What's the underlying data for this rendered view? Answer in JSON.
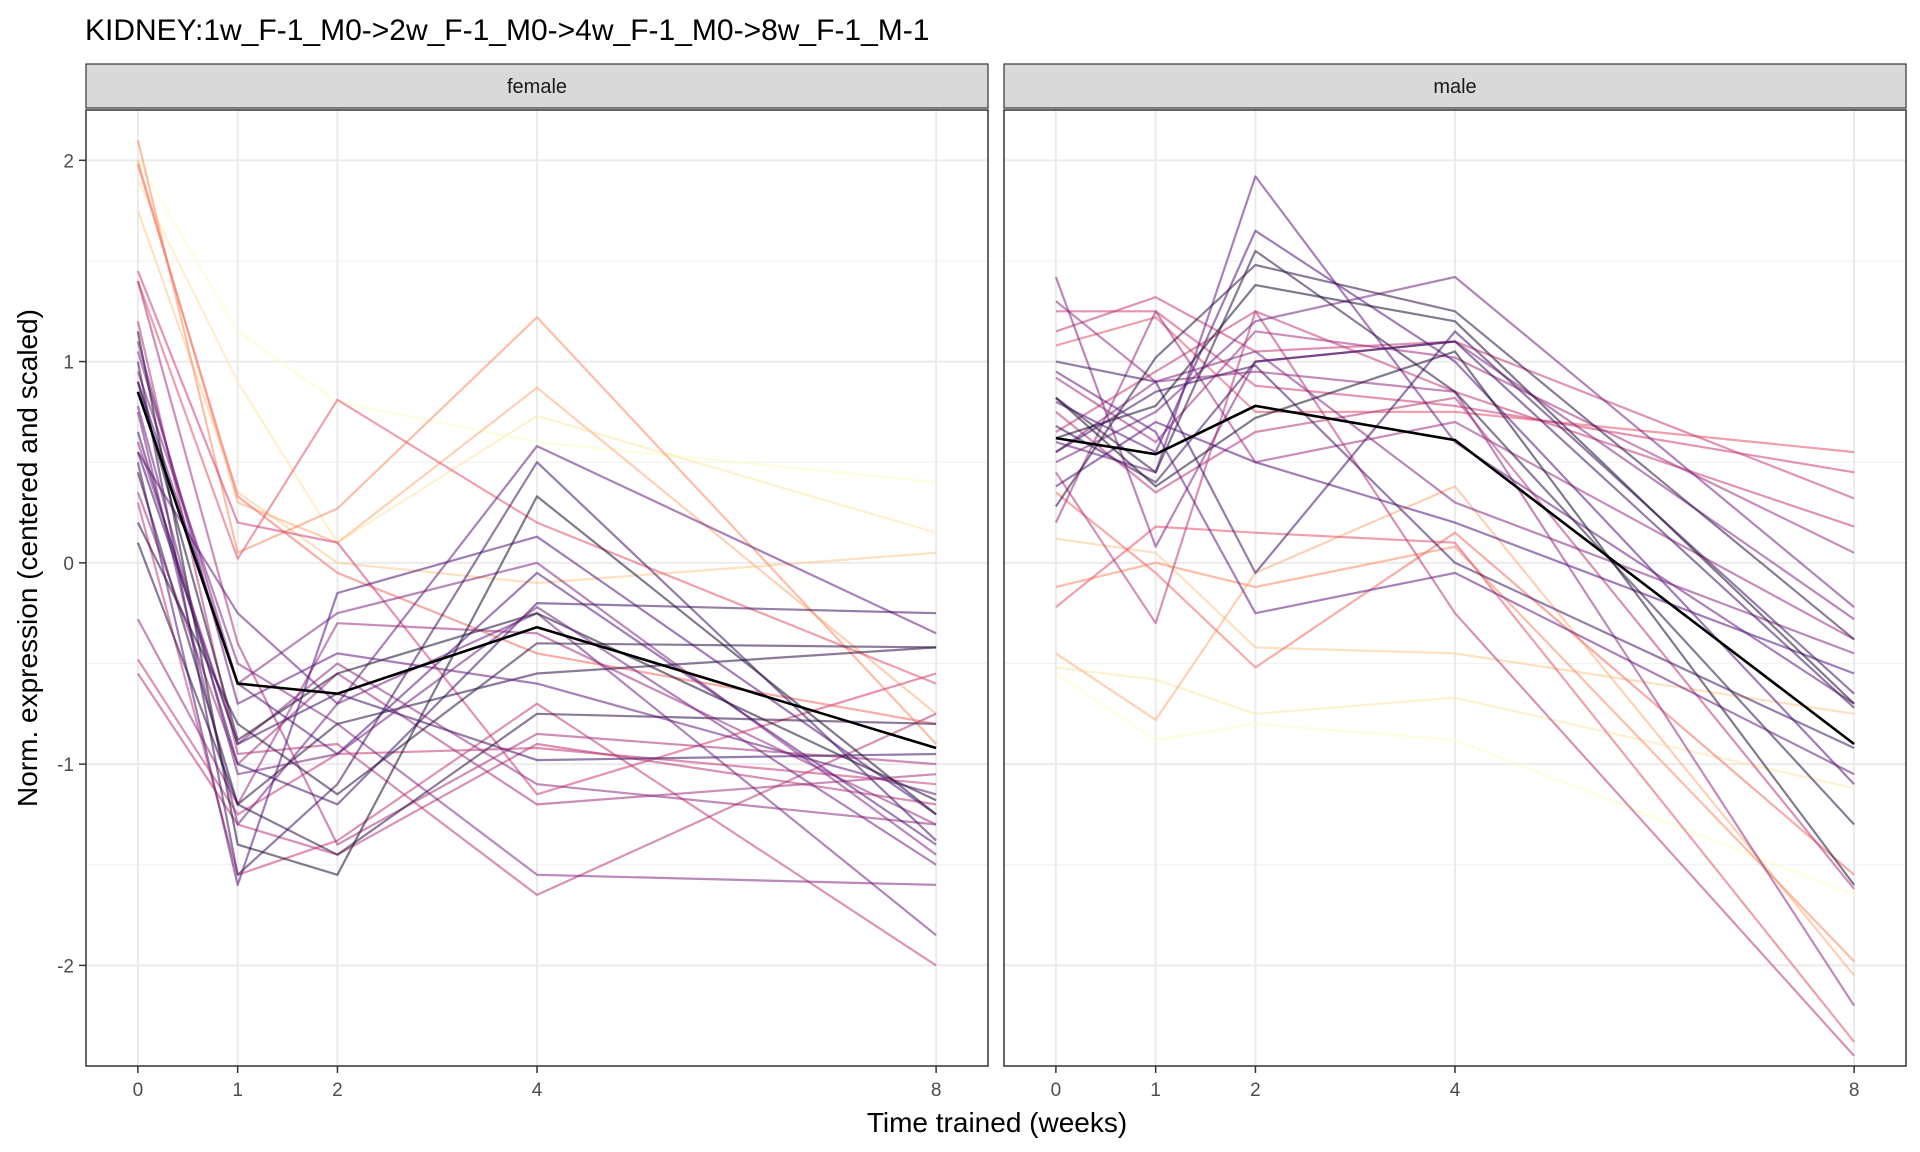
{
  "chart_data": {
    "type": "line",
    "title": "KIDNEY:1w_F-1_M0->2w_F-1_M0->4w_F-1_M0->8w_F-1_M-1",
    "xlabel": "Time trained (weeks)",
    "ylabel": "Norm. expression (centered and scaled)",
    "x": [
      0,
      1,
      2,
      4,
      8
    ],
    "x_ticks": [
      "0",
      "1",
      "2",
      "4",
      "8"
    ],
    "ylim": [
      -2.5,
      2.25
    ],
    "y_ticks": [
      2,
      1,
      0,
      -1,
      -2
    ],
    "y_tick_labels": [
      "2",
      "1",
      "0",
      "-1",
      "-2"
    ],
    "grid": true,
    "legend": "none",
    "colors": {
      "mean_line": "#000000",
      "palette": [
        "#fcfdbf",
        "#fec98d",
        "#fb8861",
        "#e3506a",
        "#b73779",
        "#822681",
        "#51127c",
        "#2a1141",
        "#000004"
      ]
    },
    "facets": [
      {
        "label": "female",
        "mean": [
          0.85,
          -0.6,
          -0.65,
          -0.32,
          -0.92
        ],
        "series": [
          {
            "values": [
              2.0,
              1.15,
              0.8,
              0.6,
              0.4
            ],
            "color": "#fcfdbf"
          },
          {
            "values": [
              1.9,
              0.9,
              0.1,
              0.73,
              0.15
            ],
            "color": "#fde5a7"
          },
          {
            "values": [
              1.75,
              0.35,
              0.0,
              -0.1,
              0.05
            ],
            "color": "#fec98d"
          },
          {
            "values": [
              2.0,
              0.3,
              0.1,
              0.87,
              -0.75
            ],
            "color": "#fdac78"
          },
          {
            "values": [
              2.1,
              0.05,
              0.27,
              1.22,
              -0.9
            ],
            "color": "#fb8861"
          },
          {
            "values": [
              1.98,
              0.33,
              -0.05,
              -0.45,
              -0.8
            ],
            "color": "#f3675e"
          },
          {
            "values": [
              1.4,
              0.02,
              0.81,
              0.2,
              -0.6
            ],
            "color": "#e3506a"
          },
          {
            "values": [
              1.45,
              0.2,
              0.1,
              -1.15,
              -0.55
            ],
            "color": "#d13b73"
          },
          {
            "values": [
              -0.48,
              -1.25,
              -0.95,
              -0.92,
              -1.1
            ],
            "color": "#c53a76"
          },
          {
            "values": [
              -0.55,
              -1.3,
              -1.45,
              -0.9,
              -1.2
            ],
            "color": "#b73779"
          },
          {
            "values": [
              0.3,
              -1.55,
              -1.38,
              -0.7,
              -2.0
            ],
            "color": "#c53a76"
          },
          {
            "values": [
              1.2,
              -0.95,
              -0.9,
              -1.65,
              -0.75
            ],
            "color": "#b73779"
          },
          {
            "values": [
              0.35,
              -1.0,
              -0.55,
              -1.2,
              -1.05
            ],
            "color": "#a02f7d"
          },
          {
            "values": [
              -0.28,
              -1.2,
              -0.3,
              -0.35,
              -1.3
            ],
            "color": "#9b2d7f"
          },
          {
            "values": [
              1.4,
              -0.4,
              -1.4,
              -0.85,
              -1.0
            ],
            "color": "#a8327c"
          },
          {
            "values": [
              0.6,
              -0.9,
              -0.5,
              -1.1,
              -1.3
            ],
            "color": "#8f2a80"
          },
          {
            "values": [
              0.95,
              -0.5,
              -0.8,
              -1.55,
              -1.6
            ],
            "color": "#822681"
          },
          {
            "values": [
              1.05,
              -0.6,
              -0.25,
              0.0,
              -1.45
            ],
            "color": "#822681"
          },
          {
            "values": [
              0.75,
              -1.3,
              -0.7,
              -0.25,
              -1.85
            ],
            "color": "#71207f"
          },
          {
            "values": [
              0.55,
              -0.25,
              -0.7,
              0.58,
              -0.35
            ],
            "color": "#63197d"
          },
          {
            "values": [
              0.5,
              -1.6,
              -0.15,
              0.13,
              -1.25
            ],
            "color": "#51127c"
          },
          {
            "values": [
              0.9,
              -0.6,
              -0.95,
              -0.05,
              -1.4
            ],
            "color": "#51127c"
          },
          {
            "values": [
              0.65,
              -1.0,
              -1.2,
              -0.2,
              -0.25
            ],
            "color": "#3d1261"
          },
          {
            "values": [
              1.0,
              -1.55,
              -1.1,
              0.5,
              -1.38
            ],
            "color": "#3d1261"
          },
          {
            "values": [
              0.2,
              -0.8,
              -1.15,
              -0.4,
              -0.42
            ],
            "color": "#2a1141"
          },
          {
            "values": [
              0.1,
              -1.2,
              -0.8,
              -0.55,
              -0.42
            ],
            "color": "#2a1141"
          },
          {
            "values": [
              1.15,
              -1.4,
              -1.55,
              0.33,
              -1.25
            ],
            "color": "#1a0d2e"
          },
          {
            "values": [
              0.45,
              -1.2,
              -1.45,
              -0.75,
              -0.8
            ],
            "color": "#2a1141"
          },
          {
            "values": [
              0.9,
              -0.88,
              -0.55,
              -0.25,
              -1.18
            ],
            "color": "#1a0d2e"
          },
          {
            "values": [
              0.55,
              -0.9,
              -0.65,
              -0.98,
              -0.95
            ],
            "color": "#3d1261"
          },
          {
            "values": [
              1.1,
              -0.7,
              -0.45,
              -0.6,
              -1.15
            ],
            "color": "#63197d"
          },
          {
            "values": [
              0.78,
              -1.05,
              -0.95,
              -0.22,
              -1.5
            ],
            "color": "#71207f"
          }
        ]
      },
      {
        "label": "male",
        "mean": [
          0.62,
          0.54,
          0.78,
          0.61,
          -0.9
        ],
        "series": [
          {
            "values": [
              -0.55,
              -0.88,
              -0.8,
              -0.88,
              -1.65
            ],
            "color": "#fcfdbf"
          },
          {
            "values": [
              -0.52,
              -0.58,
              -0.75,
              -0.67,
              -1.12
            ],
            "color": "#fde5a7"
          },
          {
            "values": [
              0.12,
              0.05,
              -0.42,
              -0.45,
              -0.75
            ],
            "color": "#fec98d"
          },
          {
            "values": [
              -0.45,
              -0.78,
              -0.05,
              0.38,
              -2.05
            ],
            "color": "#fdac78"
          },
          {
            "values": [
              -0.12,
              0.0,
              -0.12,
              0.08,
              -1.98
            ],
            "color": "#fb8861"
          },
          {
            "values": [
              0.35,
              -0.05,
              -0.52,
              0.15,
              -1.55
            ],
            "color": "#f3675e"
          },
          {
            "values": [
              -0.22,
              0.18,
              0.15,
              0.1,
              -2.38
            ],
            "color": "#e3506a"
          },
          {
            "values": [
              1.08,
              1.22,
              0.75,
              0.75,
              0.55
            ],
            "color": "#e3506a"
          },
          {
            "values": [
              1.25,
              1.25,
              0.88,
              0.78,
              0.45
            ],
            "color": "#d13b73"
          },
          {
            "values": [
              0.65,
              0.95,
              1.25,
              0.85,
              0.18
            ],
            "color": "#c53a76"
          },
          {
            "values": [
              0.45,
              -0.3,
              1.25,
              -0.25,
              -2.45
            ],
            "color": "#b73779"
          },
          {
            "values": [
              1.15,
              1.32,
              1.05,
              1.1,
              0.32
            ],
            "color": "#c53a76"
          },
          {
            "values": [
              0.92,
              0.6,
              1.15,
              1.02,
              0.05
            ],
            "color": "#a02f7d"
          },
          {
            "values": [
              0.75,
              0.35,
              0.65,
              0.82,
              -1.62
            ],
            "color": "#b73779"
          },
          {
            "values": [
              0.2,
              1.25,
              0.5,
              0.7,
              -0.38
            ],
            "color": "#9b2d7f"
          },
          {
            "values": [
              1.3,
              0.9,
              0.95,
              0.85,
              -2.2
            ],
            "color": "#8f2a80"
          },
          {
            "values": [
              0.55,
              0.9,
              1.05,
              0.3,
              -0.45
            ],
            "color": "#822681"
          },
          {
            "values": [
              1.42,
              0.08,
              1.0,
              1.1,
              -0.28
            ],
            "color": "#822681"
          },
          {
            "values": [
              0.5,
              0.75,
              1.2,
              1.42,
              -0.22
            ],
            "color": "#71207f"
          },
          {
            "values": [
              0.6,
              0.45,
              1.92,
              0.6,
              -0.7
            ],
            "color": "#63197d"
          },
          {
            "values": [
              0.8,
              0.55,
              1.65,
              1.0,
              -1.1
            ],
            "color": "#51127c"
          },
          {
            "values": [
              0.38,
              0.7,
              0.5,
              0.2,
              -0.55
            ],
            "color": "#51127c"
          },
          {
            "values": [
              1.0,
              0.9,
              -0.05,
              1.15,
              -0.65
            ],
            "color": "#3d1261"
          },
          {
            "values": [
              0.68,
              0.4,
              1.0,
              1.1,
              -0.72
            ],
            "color": "#3d1261"
          },
          {
            "values": [
              0.82,
              0.45,
              1.55,
              0.85,
              -1.3
            ],
            "color": "#2a1141"
          },
          {
            "values": [
              0.28,
              1.02,
              1.48,
              1.25,
              -0.38
            ],
            "color": "#2a1141"
          },
          {
            "values": [
              0.62,
              0.78,
              1.38,
              1.2,
              -0.7
            ],
            "color": "#1a0d2e"
          },
          {
            "values": [
              0.82,
              0.38,
              0.72,
              1.05,
              -1.6
            ],
            "color": "#1a0d2e"
          },
          {
            "values": [
              0.55,
              0.85,
              0.98,
              0.0,
              -0.92
            ],
            "color": "#3d1261"
          },
          {
            "values": [
              0.95,
              0.65,
              -0.25,
              -0.05,
              -1.05
            ],
            "color": "#63197d"
          }
        ]
      }
    ]
  }
}
